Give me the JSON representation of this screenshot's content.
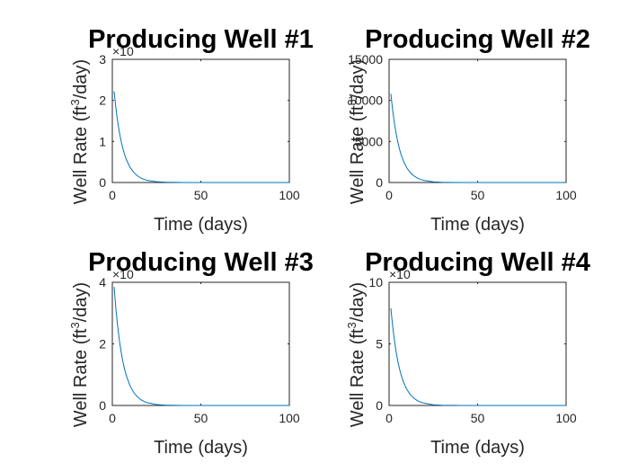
{
  "figure": {
    "background": "#ffffff",
    "line_color": "#0072BD"
  },
  "chart_data": [
    {
      "type": "line",
      "title": "Producing Well #1",
      "xlabel": "Time (days)",
      "ylabel_prefix": "Well Rate (ft",
      "ylabel_sup": "3",
      "ylabel_suffix": "/day)",
      "xlim": [
        0,
        100
      ],
      "ylim": [
        0,
        3
      ],
      "y_exponent_label": "×10",
      "xticks": [
        "0",
        "50",
        "100"
      ],
      "yticks": [
        "0",
        "1",
        "2",
        "3"
      ],
      "ytick_values": [
        0,
        1,
        2,
        3
      ],
      "series": [
        {
          "x": [
            1,
            2,
            3,
            4,
            5,
            6,
            7,
            8,
            10,
            12,
            14,
            16,
            18,
            20,
            25,
            30,
            40,
            50,
            60,
            70,
            80,
            90,
            100
          ],
          "y": [
            2.22,
            1.82,
            1.49,
            1.22,
            1.0,
            0.82,
            0.67,
            0.55,
            0.37,
            0.25,
            0.17,
            0.11,
            0.075,
            0.05,
            0.02,
            0.008,
            0.001,
            0,
            0,
            0,
            0,
            0,
            0
          ]
        }
      ]
    },
    {
      "type": "line",
      "title": "Producing Well #2",
      "xlabel": "Time (days)",
      "ylabel_prefix": "Well Rate (ft",
      "ylabel_sup": "3",
      "ylabel_suffix": "/day)",
      "xlim": [
        0,
        100
      ],
      "ylim": [
        0,
        15000
      ],
      "y_exponent_label": "",
      "xticks": [
        "0",
        "50",
        "100"
      ],
      "yticks": [
        "0",
        "5000",
        "10000",
        "15000"
      ],
      "ytick_values": [
        0,
        5000,
        10000,
        15000
      ],
      "series": [
        {
          "x": [
            1,
            2,
            3,
            4,
            5,
            6,
            7,
            8,
            10,
            12,
            14,
            16,
            18,
            20,
            25,
            30,
            40,
            50,
            60,
            70,
            80,
            90,
            100
          ],
          "y": [
            10800,
            8850,
            7250,
            5940,
            4860,
            3980,
            3260,
            2670,
            1790,
            1200,
            806,
            540,
            362,
            243,
            80,
            27,
            3,
            0,
            0,
            0,
            0,
            0,
            0
          ]
        }
      ]
    },
    {
      "type": "line",
      "title": "Producing Well #3",
      "xlabel": "Time (days)",
      "ylabel_prefix": "Well Rate (ft",
      "ylabel_sup": "3",
      "ylabel_suffix": "/day)",
      "xlim": [
        0,
        100
      ],
      "ylim": [
        0,
        4
      ],
      "y_exponent_label": "×10",
      "xticks": [
        "0",
        "50",
        "100"
      ],
      "yticks": [
        "0",
        "2",
        "4"
      ],
      "ytick_values": [
        0,
        2,
        4
      ],
      "series": [
        {
          "x": [
            1,
            2,
            3,
            4,
            5,
            6,
            7,
            8,
            10,
            12,
            14,
            16,
            18,
            20,
            25,
            30,
            40,
            50,
            60,
            70,
            80,
            90,
            100
          ],
          "y": [
            3.85,
            3.15,
            2.58,
            2.11,
            1.73,
            1.42,
            1.16,
            0.95,
            0.64,
            0.43,
            0.29,
            0.19,
            0.13,
            0.086,
            0.028,
            0.01,
            0.001,
            0,
            0,
            0,
            0,
            0,
            0
          ]
        }
      ]
    },
    {
      "type": "line",
      "title": "Producing Well #4",
      "xlabel": "Time (days)",
      "ylabel_prefix": "Well Rate (ft",
      "ylabel_sup": "3",
      "ylabel_suffix": "/day)",
      "xlim": [
        0,
        100
      ],
      "ylim": [
        0,
        10
      ],
      "y_exponent_label": "×10",
      "xticks": [
        "0",
        "50",
        "100"
      ],
      "yticks": [
        "0",
        "5",
        "10"
      ],
      "ytick_values": [
        0,
        5,
        10
      ],
      "series": [
        {
          "x": [
            1,
            2,
            3,
            4,
            5,
            6,
            7,
            8,
            10,
            12,
            14,
            16,
            18,
            20,
            25,
            30,
            40,
            50,
            60,
            70,
            80,
            90,
            100
          ],
          "y": [
            7.9,
            6.47,
            5.3,
            4.34,
            3.55,
            2.91,
            2.38,
            1.95,
            1.31,
            0.88,
            0.59,
            0.39,
            0.26,
            0.18,
            0.058,
            0.02,
            0.002,
            0,
            0,
            0,
            0,
            0,
            0
          ]
        }
      ]
    }
  ]
}
